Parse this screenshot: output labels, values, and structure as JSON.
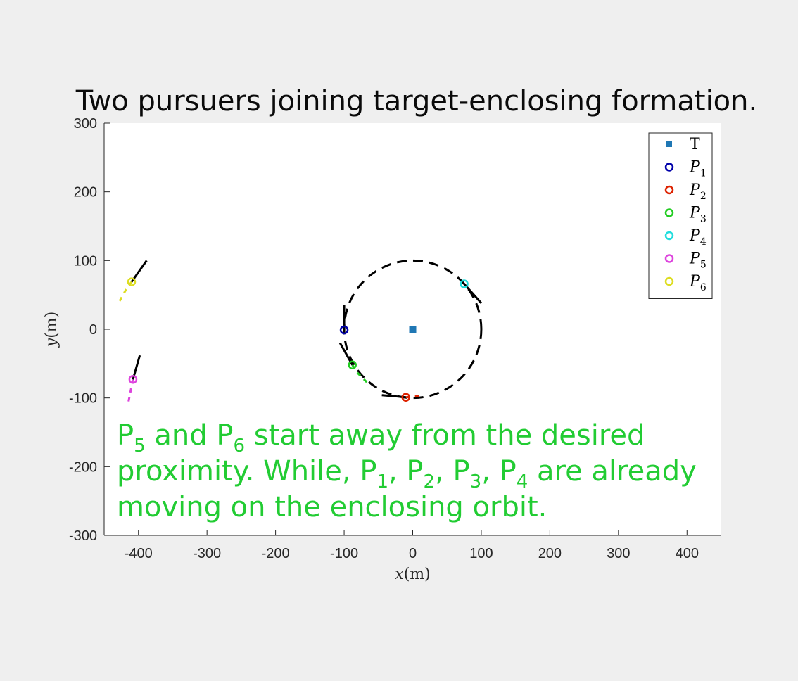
{
  "chart_data": {
    "type": "scatter",
    "title": "Two pursuers joining target-enclosing formation.",
    "xlabel": "x(m)",
    "ylabel": "y(m)",
    "xlim": [
      -450,
      450
    ],
    "ylim": [
      -300,
      300
    ],
    "xticks": [
      -400,
      -300,
      -200,
      -100,
      0,
      100,
      200,
      300,
      400
    ],
    "yticks": [
      -300,
      -200,
      -100,
      0,
      100,
      200,
      300
    ],
    "grid": false,
    "legend_position": "top-right",
    "enclosing_circle": {
      "center": [
        0,
        0
      ],
      "radius": 100,
      "style": "dashed",
      "color": "#000000"
    },
    "series": [
      {
        "name": "T",
        "marker": "square",
        "color": "#1f77b4",
        "points": [
          [
            0,
            0
          ]
        ]
      },
      {
        "name": "P_1",
        "marker": "circle",
        "color": "#0000aa",
        "points": [
          [
            -100,
            -1
          ]
        ],
        "heading": [
          [
            -100,
            35
          ],
          [
            -100,
            -1
          ]
        ],
        "trail": []
      },
      {
        "name": "P_2",
        "marker": "circle",
        "color": "#dd2200",
        "points": [
          [
            -10,
            -99
          ]
        ],
        "heading": [
          [
            -45,
            -96
          ],
          [
            -10,
            -99
          ]
        ],
        "trail": [
          [
            -10,
            -99
          ],
          [
            15,
            -97
          ]
        ]
      },
      {
        "name": "P_3",
        "marker": "circle",
        "color": "#22cc22",
        "points": [
          [
            -88,
            -52
          ]
        ],
        "heading": [
          [
            -106,
            -20
          ],
          [
            -88,
            -52
          ]
        ],
        "trail": [
          [
            -88,
            -52
          ],
          [
            -80,
            -64
          ],
          [
            -66,
            -78
          ]
        ]
      },
      {
        "name": "P_4",
        "marker": "circle",
        "color": "#22dddd",
        "points": [
          [
            75,
            66
          ]
        ],
        "heading": [
          [
            100,
            38
          ],
          [
            75,
            66
          ]
        ],
        "trail": []
      },
      {
        "name": "P_5",
        "marker": "circle",
        "color": "#dd44dd",
        "points": [
          [
            -408,
            -73
          ]
        ],
        "heading": [
          [
            -398,
            -38
          ],
          [
            -408,
            -73
          ]
        ],
        "trail": [
          [
            -408,
            -73
          ],
          [
            -412,
            -93
          ],
          [
            -415,
            -108
          ]
        ]
      },
      {
        "name": "P_6",
        "marker": "circle",
        "color": "#dddd22",
        "points": [
          [
            -410,
            69
          ]
        ],
        "heading": [
          [
            -388,
            100
          ],
          [
            -410,
            69
          ]
        ],
        "trail": [
          [
            -410,
            69
          ],
          [
            -418,
            58
          ],
          [
            -428,
            40
          ]
        ]
      }
    ]
  },
  "legend": {
    "labels": [
      {
        "base": "T",
        "sub": ""
      },
      {
        "base": "P",
        "sub": "1"
      },
      {
        "base": "P",
        "sub": "2"
      },
      {
        "base": "P",
        "sub": "3"
      },
      {
        "base": "P",
        "sub": "4"
      },
      {
        "base": "P",
        "sub": "5"
      },
      {
        "base": "P",
        "sub": "6"
      }
    ]
  },
  "annotation": {
    "color": "#22cc33",
    "line1": [
      {
        "t": "P"
      },
      {
        "t": "5",
        "sub": true
      },
      {
        "t": " and P"
      },
      {
        "t": "6",
        "sub": true
      },
      {
        "t": " start away from the desired"
      }
    ],
    "line2": [
      {
        "t": "proximity. While, P"
      },
      {
        "t": "1",
        "sub": true
      },
      {
        "t": ", P"
      },
      {
        "t": "2",
        "sub": true
      },
      {
        "t": ", P"
      },
      {
        "t": "3",
        "sub": true
      },
      {
        "t": ", P"
      },
      {
        "t": "4",
        "sub": true
      },
      {
        "t": " are already"
      }
    ],
    "line3": [
      {
        "t": "moving on the enclosing orbit."
      }
    ]
  }
}
